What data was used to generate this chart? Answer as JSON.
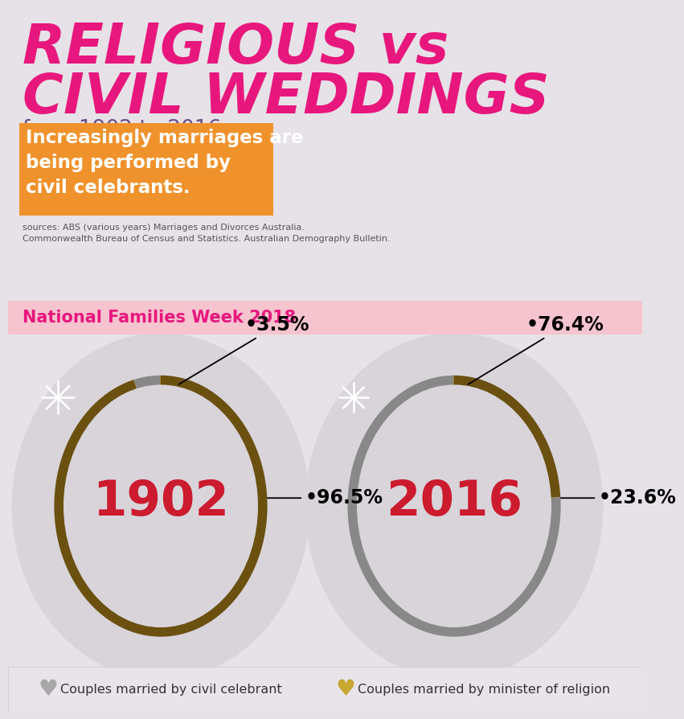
{
  "title_line1": "RELIGIOUS vs",
  "title_line2": "CIVIL WEDDINGS",
  "subtitle": "from 1902 to 2016",
  "highlight_text": "Increasingly marriages are\nbeing performed by\ncivil celebrants.",
  "sources_text": "sources: ABS (various years) Marriages and Divorces Australia.\nCommonwealth Bureau of Census and Statistics. Australian Demography Bulletin.",
  "footer_text": "National Families Week 2018",
  "year1": "1902",
  "year2": "2016",
  "label1_top": "•3.5%",
  "label1_bottom": "•96.5%",
  "label2_top": "•76.4%",
  "label2_bottom": "•23.6%",
  "legend_civil": "Couples married by civil celebrant",
  "legend_religion": "Couples married by minister of religion",
  "bg_top": "#e6e2e8",
  "bg_bottom": "#d8d4da",
  "title_color": "#e8177d",
  "subtitle_color": "#6b4c8c",
  "highlight_bg": "#f0922b",
  "highlight_text_color": "#ffffff",
  "footer_bg": "#f5c4cf",
  "footer_text_color": "#e8177d",
  "year_color": "#cc1a2e",
  "sources_color": "#555555",
  "legend_bg": "#e8e4ea"
}
